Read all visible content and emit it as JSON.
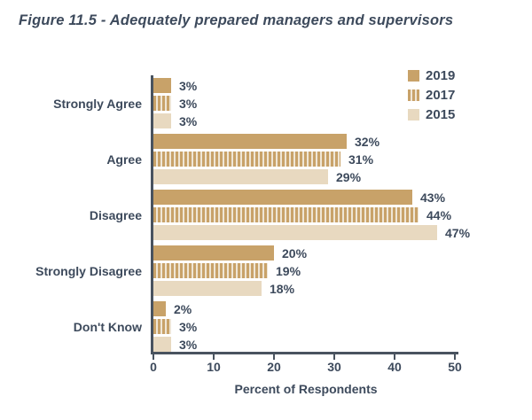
{
  "title": "Figure 11.5 - Adequately prepared managers and supervisors",
  "colors": {
    "bar_2019": "#c8a269",
    "bar_2015": "#e8d9c0",
    "stripe_gap": "#efe6d6",
    "axis": "#49535f",
    "text": "#3d4a5c"
  },
  "chart_data": {
    "type": "bar",
    "orientation": "horizontal",
    "title": "Figure 11.5 - Adequately prepared managers and supervisors",
    "categories": [
      "Strongly Agree",
      "Agree",
      "Disagree",
      "Strongly Disagree",
      "Don't Know"
    ],
    "series": [
      {
        "name": "2019",
        "style": "solid",
        "values": [
          3,
          32,
          43,
          20,
          2
        ]
      },
      {
        "name": "2017",
        "style": "striped",
        "values": [
          3,
          31,
          44,
          19,
          3
        ]
      },
      {
        "name": "2015",
        "style": "light",
        "values": [
          3,
          29,
          47,
          18,
          3
        ]
      }
    ],
    "value_suffix": "%",
    "xlabel": "Percent of Respondents",
    "xlim": [
      0,
      50
    ],
    "xticks": [
      0,
      10,
      20,
      30,
      40,
      50
    ],
    "legend_position": "top-right",
    "grid": false
  }
}
